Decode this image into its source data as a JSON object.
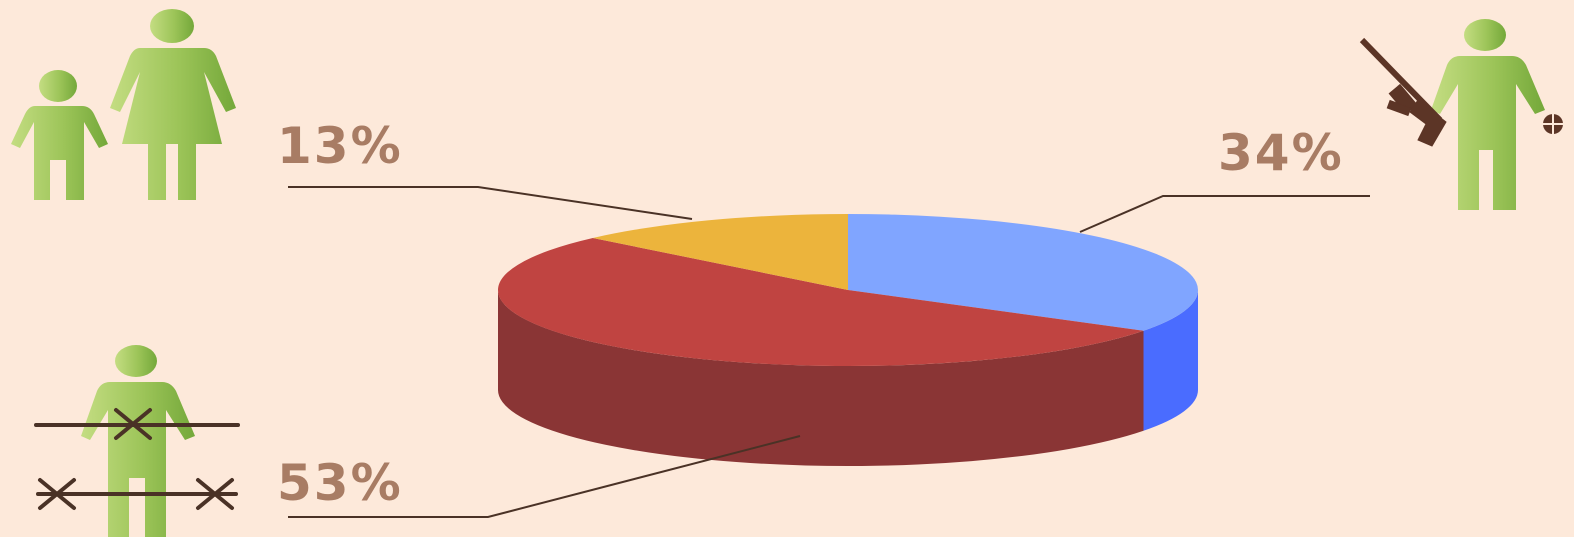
{
  "colors": {
    "background": "#fde9da",
    "label": "#a87c64",
    "leader": "#4a3226",
    "figure_light": "#b3d16a",
    "figure_dark": "#74a83a",
    "weapon": "#5c3526",
    "cross": "#4a3226"
  },
  "icons": {
    "top_left": "mother-and-child-icon",
    "top_right": "armed-man-icon",
    "bottom_left": "crossed-out-man-icon"
  },
  "chart_data": {
    "type": "pie",
    "style": "3d",
    "title": "",
    "slices": [
      {
        "label": "34%",
        "value": 34,
        "color": "#80a5ff",
        "side_color": "#4a6cff"
      },
      {
        "label": "53%",
        "value": 53,
        "color": "#c04441",
        "side_color": "#8a3535"
      },
      {
        "label": "13%",
        "value": 13,
        "color": "#ecb43c",
        "side_color": "#b8862a"
      }
    ],
    "start_angle_deg": -90,
    "direction": "clockwise",
    "legend": "none"
  }
}
